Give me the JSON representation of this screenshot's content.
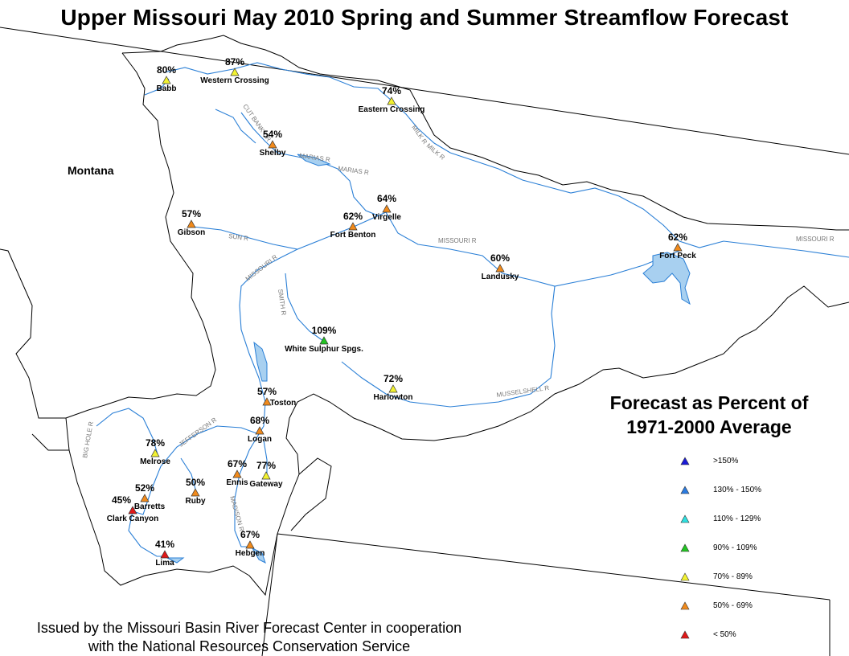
{
  "title": "Upper Missouri May 2010 Spring and Summer Streamflow Forecast",
  "state_label": "Montana",
  "legend": {
    "title_line1": "Forecast as Percent of",
    "title_line2": "1971-2000 Average",
    "items": [
      {
        "label": ">150%",
        "color": "#1a1ad6"
      },
      {
        "label": "130% - 150%",
        "color": "#2b7be0"
      },
      {
        "label": "110% - 129%",
        "color": "#2ee0e0"
      },
      {
        "label": "90% - 109%",
        "color": "#22c422"
      },
      {
        "label": "70% - 89%",
        "color": "#f2f230"
      },
      {
        "label": "50% - 69%",
        "color": "#f08a1c"
      },
      {
        "label": "< 50%",
        "color": "#e01818"
      }
    ]
  },
  "stations": [
    {
      "name": "Babb",
      "percent": "80%",
      "class": "70% - 89%"
    },
    {
      "name": "Western Crossing",
      "percent": "87%",
      "class": "70% - 89%"
    },
    {
      "name": "Eastern Crossing",
      "percent": "74%",
      "class": "70% - 89%"
    },
    {
      "name": "Shelby",
      "percent": "54%",
      "class": "50% - 69%"
    },
    {
      "name": "Virgelle",
      "percent": "64%",
      "class": "50% - 69%"
    },
    {
      "name": "Fort Benton",
      "percent": "62%",
      "class": "50% - 69%"
    },
    {
      "name": "Gibson",
      "percent": "57%",
      "class": "50% - 69%"
    },
    {
      "name": "Landusky",
      "percent": "60%",
      "class": "50% - 69%"
    },
    {
      "name": "Fort Peck",
      "percent": "62%",
      "class": "50% - 69%"
    },
    {
      "name": "White Sulphur Spgs.",
      "percent": "109%",
      "class": "90% - 109%"
    },
    {
      "name": "Harlowton",
      "percent": "72%",
      "class": "70% - 89%"
    },
    {
      "name": "Toston",
      "percent": "57%",
      "class": "50% - 69%"
    },
    {
      "name": "Logan",
      "percent": "68%",
      "class": "50% - 69%"
    },
    {
      "name": "Melrose",
      "percent": "78%",
      "class": "70% - 89%"
    },
    {
      "name": "Ennis",
      "percent": "67%",
      "class": "50% - 69%"
    },
    {
      "name": "Gateway",
      "percent": "77%",
      "class": "70% - 89%"
    },
    {
      "name": "Barretts",
      "percent": "52%",
      "class": "50% - 69%"
    },
    {
      "name": "Ruby",
      "percent": "50%",
      "class": "50% - 69%"
    },
    {
      "name": "Clark Canyon",
      "percent": "45%",
      "class": "< 50%"
    },
    {
      "name": "Lima",
      "percent": "41%",
      "class": "< 50%"
    },
    {
      "name": "Hebgen",
      "percent": "67%",
      "class": "50% - 69%"
    }
  ],
  "rivers": [
    "MISSOURI R",
    "MISSOURI R",
    "MISSOURI R",
    "MARIAS R",
    "MARIAS R",
    "MILK R",
    "MILK R",
    "CUT BANK CR",
    "SUN R",
    "SMITH R",
    "MUSSELSHELL R",
    "JEFFERSON R",
    "BIG HOLE R",
    "MADISON R"
  ],
  "issued_by": {
    "line1": "Issued by the Missouri Basin River Forecast Center in cooperation",
    "line2": "with the National Resources Conservation Service"
  },
  "colors": {
    "river": "#2a7fd6",
    "lake": "#a8d0f0",
    "boundary": "#000000",
    "river_label": "#777777"
  }
}
